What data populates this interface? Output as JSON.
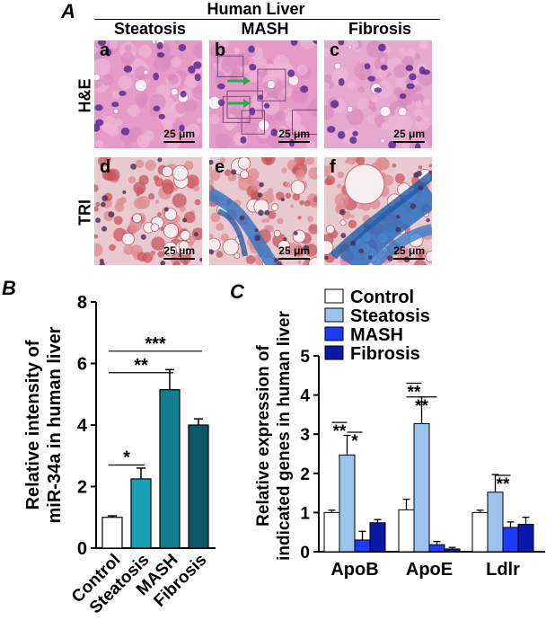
{
  "figure": {
    "panel_a": {
      "letter": "A",
      "title": "Human Liver",
      "columns": [
        "Steatosis",
        "MASH",
        "Fibrosis"
      ],
      "rows": [
        "H&E",
        "TRI"
      ],
      "tiles": [
        "a",
        "b",
        "c",
        "d",
        "e",
        "f"
      ],
      "scale_label": "25 μm"
    },
    "panel_b": {
      "letter": "B"
    },
    "panel_c": {
      "letter": "C"
    }
  },
  "chart_data": [
    {
      "type": "bar",
      "panel": "B",
      "categories": [
        "Control",
        "Steatosis",
        "MASH",
        "Fibrosis"
      ],
      "values": [
        1.0,
        2.25,
        5.15,
        4.0
      ],
      "errors": [
        0.05,
        0.35,
        0.65,
        0.2
      ],
      "colors": [
        "#ffffff",
        "#1aa0b4",
        "#127d8e",
        "#0d5866"
      ],
      "ylabel": "Relative intensity of miR-34a in human liver",
      "ylim": [
        0,
        8
      ],
      "yticks": [
        0,
        2,
        4,
        6,
        8
      ],
      "significance": [
        {
          "from": "Control",
          "to": "Steatosis",
          "label": "*"
        },
        {
          "from": "Control",
          "to": "MASH",
          "label": "**"
        },
        {
          "from": "Control",
          "to": "Fibrosis",
          "label": "***"
        }
      ]
    },
    {
      "type": "bar",
      "panel": "C",
      "categories": [
        "ApoB",
        "ApoE",
        "Ldlr"
      ],
      "series": [
        {
          "name": "Control",
          "color": "#ffffff",
          "values": [
            1.0,
            1.07,
            1.0
          ],
          "errors": [
            0.06,
            0.27,
            0.06
          ]
        },
        {
          "name": "Steatosis",
          "color": "#9cc3ee",
          "values": [
            2.47,
            3.27,
            1.52
          ],
          "errors": [
            0.5,
            0.68,
            0.45
          ]
        },
        {
          "name": "MASH",
          "color": "#1b3bff",
          "values": [
            0.3,
            0.18,
            0.62
          ],
          "errors": [
            0.22,
            0.08,
            0.14
          ]
        },
        {
          "name": "Fibrosis",
          "color": "#0a1aa6",
          "values": [
            0.74,
            0.07,
            0.7
          ],
          "errors": [
            0.08,
            0.04,
            0.18
          ]
        }
      ],
      "ylabel": "Relative expression of indicated genes in human liver",
      "ylim": [
        0,
        5
      ],
      "yticks": [
        0,
        1,
        2,
        3,
        4,
        5
      ],
      "legend": "top-left",
      "significance": [
        {
          "category": "ApoB",
          "from": "Control",
          "to": "Steatosis",
          "label": "**"
        },
        {
          "category": "ApoB",
          "from": "Steatosis",
          "to": "MASH",
          "label": "*"
        },
        {
          "category": "ApoE",
          "from": "Control",
          "to": "Steatosis",
          "label": "**"
        },
        {
          "category": "ApoE",
          "from": "Control",
          "to": "MASH",
          "label": "**"
        },
        {
          "category": "Ldlr",
          "from": "Steatosis",
          "to": "MASH",
          "label": "**"
        }
      ]
    }
  ]
}
